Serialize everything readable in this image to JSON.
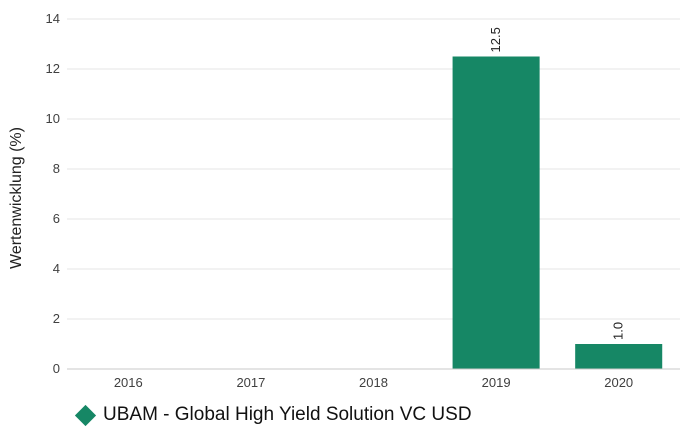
{
  "chart_data": {
    "type": "bar",
    "categories": [
      "2016",
      "2017",
      "2018",
      "2019",
      "2020"
    ],
    "series": [
      {
        "name": "UBAM - Global High Yield Solution VC USD",
        "values": [
          null,
          null,
          null,
          12.5,
          1.0
        ],
        "labels": [
          "",
          "",
          "",
          "12.5",
          "1.0"
        ]
      }
    ],
    "ylabel": "Wertenwicklung (%)",
    "xlabel": "",
    "ylim": [
      0,
      14
    ],
    "yticks": [
      "0",
      "2",
      "4",
      "6",
      "8",
      "10",
      "12",
      "14"
    ],
    "grid": true,
    "legend_position": "bottom-left",
    "colors": {
      "bar": "#168765",
      "grid": "#e6e6e6",
      "axis": "#c8c8c8"
    }
  }
}
